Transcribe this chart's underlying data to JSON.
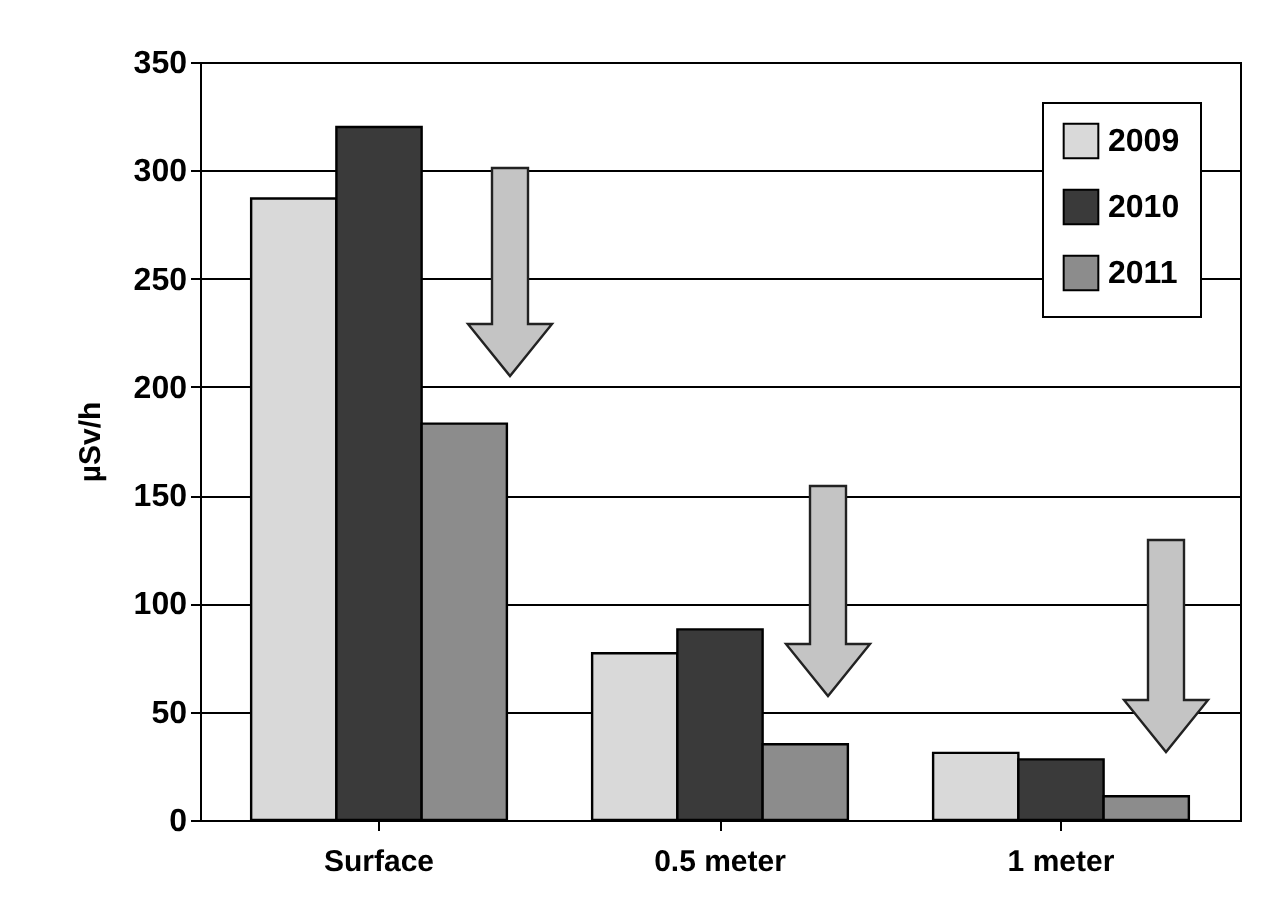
{
  "chart_data": {
    "type": "bar",
    "ylabel": "µSv/h",
    "categories": [
      "Surface",
      "0.5 meter",
      "1 meter"
    ],
    "series": [
      {
        "name": "2009",
        "color": "#d9d9d9",
        "values": [
          287,
          77,
          31
        ]
      },
      {
        "name": "2010",
        "color": "#3a3a3a",
        "values": [
          320,
          88,
          28
        ]
      },
      {
        "name": "2011",
        "color": "#8c8c8c",
        "values": [
          183,
          35,
          11
        ]
      }
    ],
    "ylim": [
      0,
      350
    ],
    "yticks": [
      0,
      50,
      100,
      150,
      200,
      250,
      300,
      350
    ],
    "grid": "y",
    "legend": "top right"
  }
}
